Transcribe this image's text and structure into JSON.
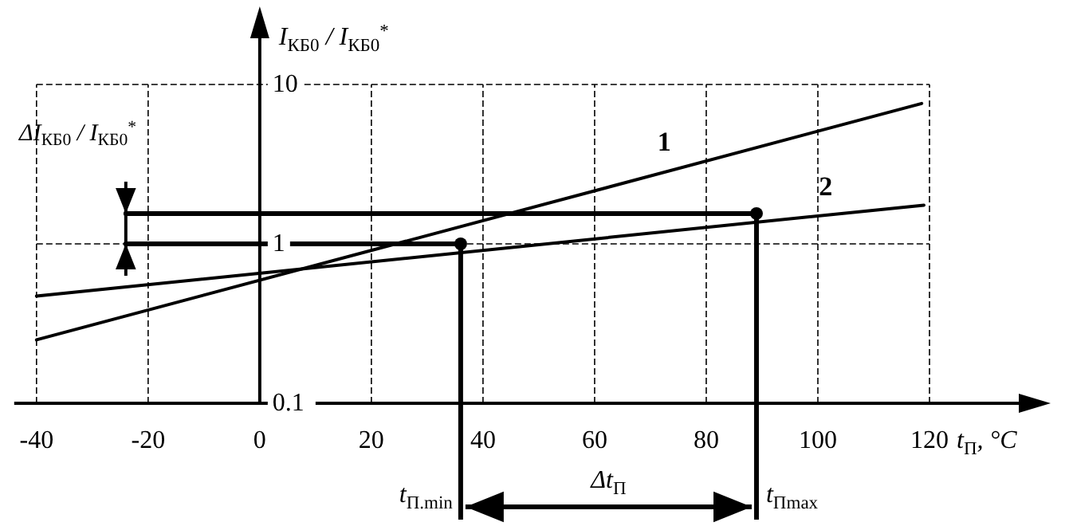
{
  "chart_data": {
    "type": "line",
    "xlabel": "t$_{П}$, °C",
    "ylabel": "I$_{КБ0}$ / I$_{КБ0}$$^{*}$",
    "log": true,
    "grid": true,
    "xlim": [
      -44,
      136
    ],
    "ylim": [
      0.1,
      10
    ],
    "xticks": [
      -40,
      -20,
      0,
      20,
      40,
      60,
      80,
      100,
      120
    ],
    "yticks": [
      0.1,
      1,
      10
    ],
    "series": [
      {
        "name": "1",
        "color": "#000000",
        "x": [
          -40,
          118.6
        ],
        "values": [
          0.25,
          7.6
        ]
      },
      {
        "name": "2",
        "color": "#000000",
        "x": [
          -40,
          119
        ],
        "values": [
          0.47,
          1.75
        ]
      },
      {
        "color": "#000000",
        "x": [
          -24,
          36
        ],
        "values": [
          1,
          1
        ]
      },
      {
        "color": "#000000",
        "x": [
          -24,
          89
        ],
        "values": [
          1.55,
          1.55
        ]
      },
      {
        "type": "scatter",
        "color": "#000000",
        "marker": "circle",
        "x": [
          36,
          89
        ],
        "values": [
          1,
          1.55
        ]
      }
    ],
    "ref_lines": [
      {
        "axis": "x",
        "value": 36,
        "label": "t$_{П.min}$"
      },
      {
        "axis": "x",
        "value": 89,
        "label": "t$_{Пmax}$"
      }
    ],
    "annotations": [
      "Δt$_{П}$",
      "ΔI$_{КБ0}$ / I$_{КБ0}$$^{*}$"
    ]
  }
}
